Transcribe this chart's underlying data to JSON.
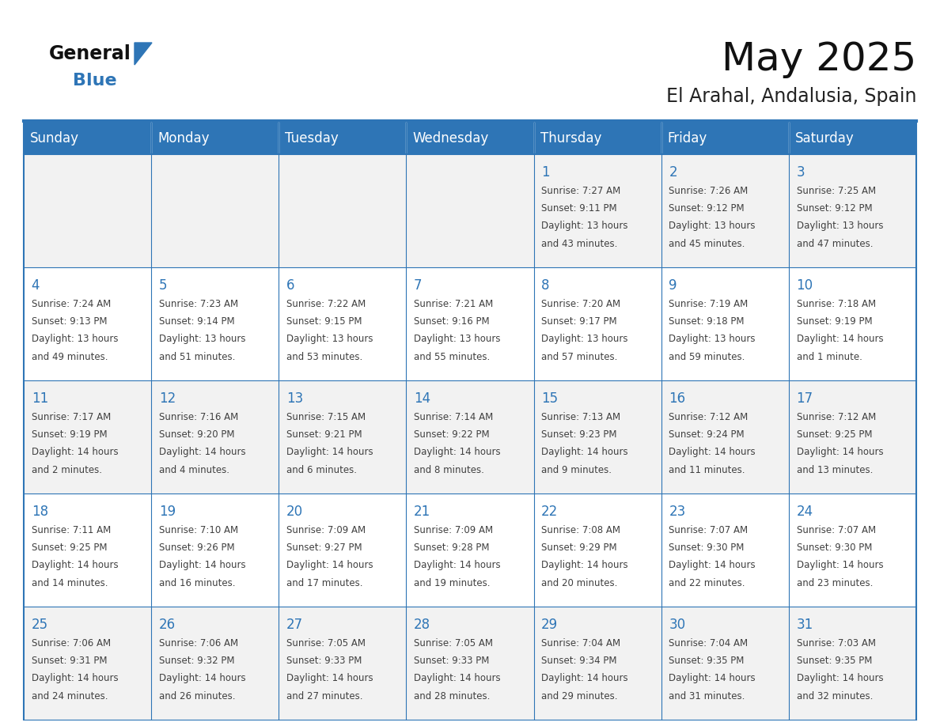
{
  "title": "May 2025",
  "subtitle": "El Arahal, Andalusia, Spain",
  "header_bg": "#2E75B6",
  "header_text_color": "#FFFFFF",
  "day_names": [
    "Sunday",
    "Monday",
    "Tuesday",
    "Wednesday",
    "Thursday",
    "Friday",
    "Saturday"
  ],
  "cell_bg_row0": "#F2F2F2",
  "cell_bg_row1": "#FFFFFF",
  "cell_border_color": "#2E75B6",
  "text_color": "#404040",
  "day_num_color": "#2E75B6",
  "weeks": [
    [
      {
        "day": null,
        "info": ""
      },
      {
        "day": null,
        "info": ""
      },
      {
        "day": null,
        "info": ""
      },
      {
        "day": null,
        "info": ""
      },
      {
        "day": 1,
        "info": "Sunrise: 7:27 AM\nSunset: 9:11 PM\nDaylight: 13 hours\nand 43 minutes."
      },
      {
        "day": 2,
        "info": "Sunrise: 7:26 AM\nSunset: 9:12 PM\nDaylight: 13 hours\nand 45 minutes."
      },
      {
        "day": 3,
        "info": "Sunrise: 7:25 AM\nSunset: 9:12 PM\nDaylight: 13 hours\nand 47 minutes."
      }
    ],
    [
      {
        "day": 4,
        "info": "Sunrise: 7:24 AM\nSunset: 9:13 PM\nDaylight: 13 hours\nand 49 minutes."
      },
      {
        "day": 5,
        "info": "Sunrise: 7:23 AM\nSunset: 9:14 PM\nDaylight: 13 hours\nand 51 minutes."
      },
      {
        "day": 6,
        "info": "Sunrise: 7:22 AM\nSunset: 9:15 PM\nDaylight: 13 hours\nand 53 minutes."
      },
      {
        "day": 7,
        "info": "Sunrise: 7:21 AM\nSunset: 9:16 PM\nDaylight: 13 hours\nand 55 minutes."
      },
      {
        "day": 8,
        "info": "Sunrise: 7:20 AM\nSunset: 9:17 PM\nDaylight: 13 hours\nand 57 minutes."
      },
      {
        "day": 9,
        "info": "Sunrise: 7:19 AM\nSunset: 9:18 PM\nDaylight: 13 hours\nand 59 minutes."
      },
      {
        "day": 10,
        "info": "Sunrise: 7:18 AM\nSunset: 9:19 PM\nDaylight: 14 hours\nand 1 minute."
      }
    ],
    [
      {
        "day": 11,
        "info": "Sunrise: 7:17 AM\nSunset: 9:19 PM\nDaylight: 14 hours\nand 2 minutes."
      },
      {
        "day": 12,
        "info": "Sunrise: 7:16 AM\nSunset: 9:20 PM\nDaylight: 14 hours\nand 4 minutes."
      },
      {
        "day": 13,
        "info": "Sunrise: 7:15 AM\nSunset: 9:21 PM\nDaylight: 14 hours\nand 6 minutes."
      },
      {
        "day": 14,
        "info": "Sunrise: 7:14 AM\nSunset: 9:22 PM\nDaylight: 14 hours\nand 8 minutes."
      },
      {
        "day": 15,
        "info": "Sunrise: 7:13 AM\nSunset: 9:23 PM\nDaylight: 14 hours\nand 9 minutes."
      },
      {
        "day": 16,
        "info": "Sunrise: 7:12 AM\nSunset: 9:24 PM\nDaylight: 14 hours\nand 11 minutes."
      },
      {
        "day": 17,
        "info": "Sunrise: 7:12 AM\nSunset: 9:25 PM\nDaylight: 14 hours\nand 13 minutes."
      }
    ],
    [
      {
        "day": 18,
        "info": "Sunrise: 7:11 AM\nSunset: 9:25 PM\nDaylight: 14 hours\nand 14 minutes."
      },
      {
        "day": 19,
        "info": "Sunrise: 7:10 AM\nSunset: 9:26 PM\nDaylight: 14 hours\nand 16 minutes."
      },
      {
        "day": 20,
        "info": "Sunrise: 7:09 AM\nSunset: 9:27 PM\nDaylight: 14 hours\nand 17 minutes."
      },
      {
        "day": 21,
        "info": "Sunrise: 7:09 AM\nSunset: 9:28 PM\nDaylight: 14 hours\nand 19 minutes."
      },
      {
        "day": 22,
        "info": "Sunrise: 7:08 AM\nSunset: 9:29 PM\nDaylight: 14 hours\nand 20 minutes."
      },
      {
        "day": 23,
        "info": "Sunrise: 7:07 AM\nSunset: 9:30 PM\nDaylight: 14 hours\nand 22 minutes."
      },
      {
        "day": 24,
        "info": "Sunrise: 7:07 AM\nSunset: 9:30 PM\nDaylight: 14 hours\nand 23 minutes."
      }
    ],
    [
      {
        "day": 25,
        "info": "Sunrise: 7:06 AM\nSunset: 9:31 PM\nDaylight: 14 hours\nand 24 minutes."
      },
      {
        "day": 26,
        "info": "Sunrise: 7:06 AM\nSunset: 9:32 PM\nDaylight: 14 hours\nand 26 minutes."
      },
      {
        "day": 27,
        "info": "Sunrise: 7:05 AM\nSunset: 9:33 PM\nDaylight: 14 hours\nand 27 minutes."
      },
      {
        "day": 28,
        "info": "Sunrise: 7:05 AM\nSunset: 9:33 PM\nDaylight: 14 hours\nand 28 minutes."
      },
      {
        "day": 29,
        "info": "Sunrise: 7:04 AM\nSunset: 9:34 PM\nDaylight: 14 hours\nand 29 minutes."
      },
      {
        "day": 30,
        "info": "Sunrise: 7:04 AM\nSunset: 9:35 PM\nDaylight: 14 hours\nand 31 minutes."
      },
      {
        "day": 31,
        "info": "Sunrise: 7:03 AM\nSunset: 9:35 PM\nDaylight: 14 hours\nand 32 minutes."
      }
    ]
  ]
}
